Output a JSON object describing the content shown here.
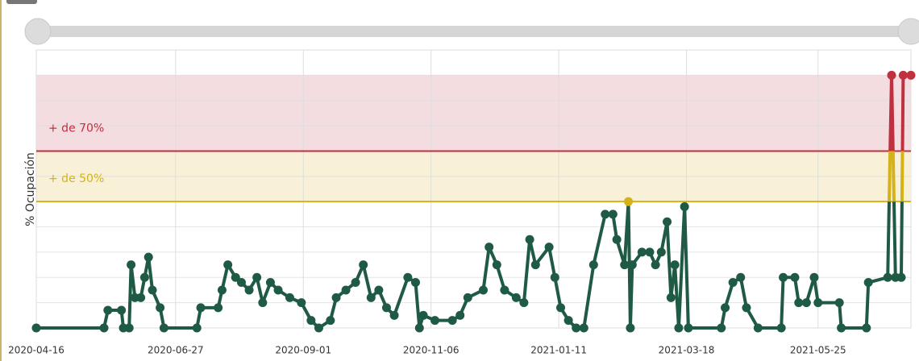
{
  "chart_data": {
    "type": "line",
    "y_label": "% Ocupación",
    "x": [
      "2020-04-16",
      "2020-05-21",
      "2020-05-23",
      "2020-05-30",
      "2020-05-31",
      "2020-06-03",
      "2020-06-04",
      "2020-06-06",
      "2020-06-09",
      "2020-06-11",
      "2020-06-13",
      "2020-06-15",
      "2020-06-19",
      "2020-06-21",
      "2020-07-08",
      "2020-07-10",
      "2020-07-19",
      "2020-07-21",
      "2020-07-24",
      "2020-07-28",
      "2020-07-31",
      "2020-08-04",
      "2020-08-08",
      "2020-08-11",
      "2020-08-15",
      "2020-08-19",
      "2020-08-25",
      "2020-08-31",
      "2020-09-05",
      "2020-09-09",
      "2020-09-15",
      "2020-09-18",
      "2020-09-23",
      "2020-09-28",
      "2020-10-02",
      "2020-10-06",
      "2020-10-10",
      "2020-10-14",
      "2020-10-18",
      "2020-10-25",
      "2020-10-29",
      "2020-10-31",
      "2020-11-02",
      "2020-11-08",
      "2020-11-17",
      "2020-11-21",
      "2020-11-25",
      "2020-12-03",
      "2020-12-06",
      "2020-12-10",
      "2020-12-14",
      "2020-12-20",
      "2020-12-24",
      "2020-12-27",
      "2020-12-30",
      "2021-01-06",
      "2021-01-09",
      "2021-01-12",
      "2021-01-16",
      "2021-01-20",
      "2021-01-24",
      "2021-01-29",
      "2021-02-04",
      "2021-02-08",
      "2021-02-10",
      "2021-02-14",
      "2021-02-16",
      "2021-02-17",
      "2021-02-18",
      "2021-02-23",
      "2021-02-27",
      "2021-03-02",
      "2021-03-05",
      "2021-03-08",
      "2021-03-10",
      "2021-03-12",
      "2021-03-14",
      "2021-03-17",
      "2021-03-19",
      "2021-04-05",
      "2021-04-07",
      "2021-04-11",
      "2021-04-15",
      "2021-04-18",
      "2021-04-24",
      "2021-05-06",
      "2021-05-07",
      "2021-05-13",
      "2021-05-15",
      "2021-05-19",
      "2021-05-23",
      "2021-05-25",
      "2021-06-05",
      "2021-06-06",
      "2021-06-19",
      "2021-06-20",
      "2021-06-30",
      "2021-07-02",
      "2021-07-04",
      "2021-07-07",
      "2021-07-08",
      "2021-07-12"
    ],
    "values": [
      0,
      0,
      7,
      7,
      0,
      0,
      25,
      12,
      12,
      20,
      28,
      15,
      8,
      0,
      0,
      8,
      8,
      15,
      25,
      20,
      18,
      15,
      20,
      10,
      18,
      15,
      12,
      10,
      3,
      0,
      3,
      12,
      15,
      18,
      25,
      12,
      15,
      8,
      5,
      20,
      18,
      0,
      5,
      3,
      3,
      5,
      12,
      15,
      32,
      25,
      15,
      12,
      10,
      35,
      25,
      32,
      20,
      8,
      3,
      0,
      0,
      25,
      45,
      45,
      35,
      25,
      50,
      0,
      25,
      30,
      30,
      25,
      30,
      42,
      12,
      25,
      0,
      48,
      0,
      0,
      8,
      18,
      20,
      8,
      0,
      0,
      20,
      20,
      10,
      10,
      20,
      10,
      10,
      0,
      0,
      18,
      20,
      100,
      20,
      20,
      100,
      100
    ],
    "color": "#1f5a45",
    "xlim": [
      "2020-04-16",
      "2021-07-12"
    ],
    "xticks": [
      "2020-04-16",
      "2020-06-27",
      "2020-09-01",
      "2020-11-06",
      "2021-01-11",
      "2021-03-18",
      "2021-05-25"
    ],
    "ylim": [
      0,
      110
    ],
    "ygrid": [
      0,
      10,
      20,
      30,
      40,
      50,
      60,
      70,
      80,
      90,
      100,
      110
    ],
    "bands": [
      {
        "label": "+ de 70%",
        "from": 70,
        "to": 100,
        "color": "#c0303e",
        "fill": "#f3dde0"
      },
      {
        "label": "+ de 50%",
        "from": 50,
        "to": 70,
        "color": "#d4b21a",
        "fill": "#f8f1d8"
      }
    ]
  }
}
